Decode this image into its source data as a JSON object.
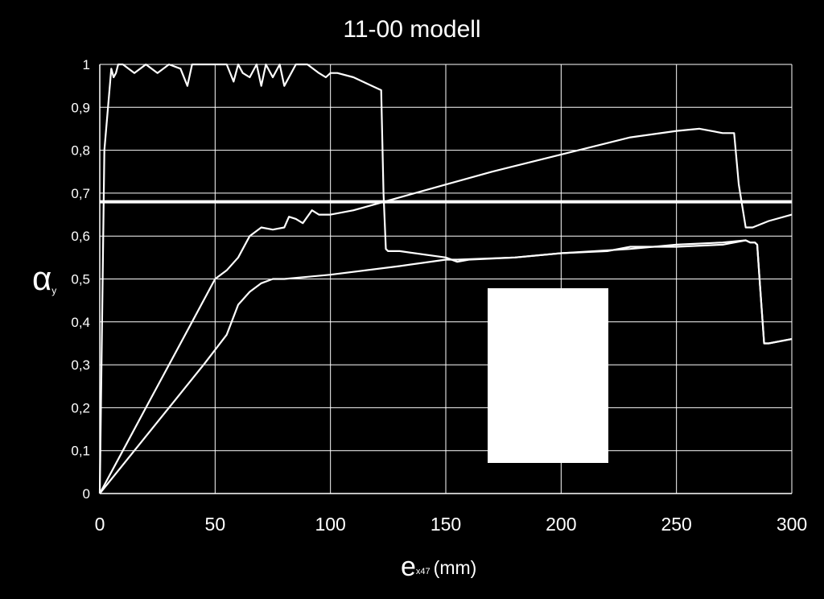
{
  "chart_data": {
    "type": "line",
    "title": "11-00 modell",
    "xlabel": {
      "main": "e",
      "sub": "x47",
      "unit": "(mm)"
    },
    "ylabel": {
      "main": "α",
      "sub": "y"
    },
    "xlim": [
      0,
      300
    ],
    "ylim": [
      0,
      1
    ],
    "xticks": [
      0,
      50,
      100,
      150,
      200,
      250,
      300
    ],
    "yticks": [
      "0",
      "0,1",
      "0,2",
      "0,3",
      "0,4",
      "0,5",
      "0,6",
      "0,7",
      "0,8",
      "0,9",
      "1"
    ],
    "grid": true,
    "legend": "none",
    "colors": {
      "background": "#000000",
      "line": "#ffffff",
      "grid": "#ffffff"
    },
    "series": [
      {
        "x": [
          0,
          2,
          5,
          6,
          7,
          8,
          10,
          15,
          20,
          25,
          30,
          35,
          38,
          40,
          42,
          45,
          55,
          58,
          60,
          62,
          65,
          68,
          70,
          72,
          75,
          78,
          80,
          85,
          90,
          95,
          98,
          100,
          103,
          110,
          118,
          122,
          123,
          124,
          125,
          130,
          150,
          155,
          160,
          180,
          200,
          220,
          230,
          250,
          270,
          280,
          282,
          284,
          285,
          286,
          288,
          290,
          300
        ],
        "y": [
          0,
          0.8,
          0.99,
          0.97,
          0.98,
          1.0,
          1.0,
          0.98,
          1.0,
          0.98,
          1.0,
          0.99,
          0.95,
          1.0,
          1.0,
          1.0,
          1.0,
          0.96,
          1.0,
          0.98,
          0.97,
          1.0,
          0.95,
          1.0,
          0.97,
          1.0,
          0.95,
          1.0,
          1.0,
          0.98,
          0.97,
          0.98,
          0.98,
          0.97,
          0.95,
          0.94,
          0.7,
          0.57,
          0.565,
          0.565,
          0.55,
          0.54,
          0.545,
          0.55,
          0.56,
          0.565,
          0.575,
          0.575,
          0.58,
          0.59,
          0.585,
          0.585,
          0.58,
          0.5,
          0.35,
          0.35,
          0.36
        ]
      },
      {
        "x": [
          0,
          10,
          20,
          30,
          40,
          50,
          55,
          60,
          65,
          70,
          75,
          80,
          82,
          85,
          88,
          92,
          95,
          100,
          110,
          120,
          130,
          150,
          170,
          200,
          230,
          250,
          260,
          270,
          275,
          277,
          280,
          283,
          290,
          300
        ],
        "y": [
          0,
          0.1,
          0.2,
          0.3,
          0.4,
          0.5,
          0.52,
          0.55,
          0.6,
          0.62,
          0.615,
          0.62,
          0.645,
          0.64,
          0.63,
          0.66,
          0.65,
          0.65,
          0.66,
          0.675,
          0.69,
          0.72,
          0.75,
          0.79,
          0.83,
          0.845,
          0.85,
          0.84,
          0.84,
          0.72,
          0.62,
          0.62,
          0.635,
          0.65
        ]
      },
      {
        "x": [
          0,
          15,
          30,
          45,
          55,
          60,
          65,
          70,
          75,
          80,
          100,
          130,
          150,
          155,
          180,
          200,
          230,
          250,
          270,
          280,
          282,
          284,
          285,
          286,
          288,
          290,
          300
        ],
        "y": [
          0,
          0.1,
          0.2,
          0.3,
          0.37,
          0.44,
          0.47,
          0.49,
          0.5,
          0.5,
          0.51,
          0.53,
          0.545,
          0.545,
          0.55,
          0.56,
          0.57,
          0.58,
          0.585,
          0.59,
          0.585,
          0.585,
          0.58,
          0.5,
          0.35,
          0.35,
          0.36
        ]
      },
      {
        "x": [
          0,
          300
        ],
        "y": [
          0.68,
          0.68
        ]
      }
    ]
  }
}
